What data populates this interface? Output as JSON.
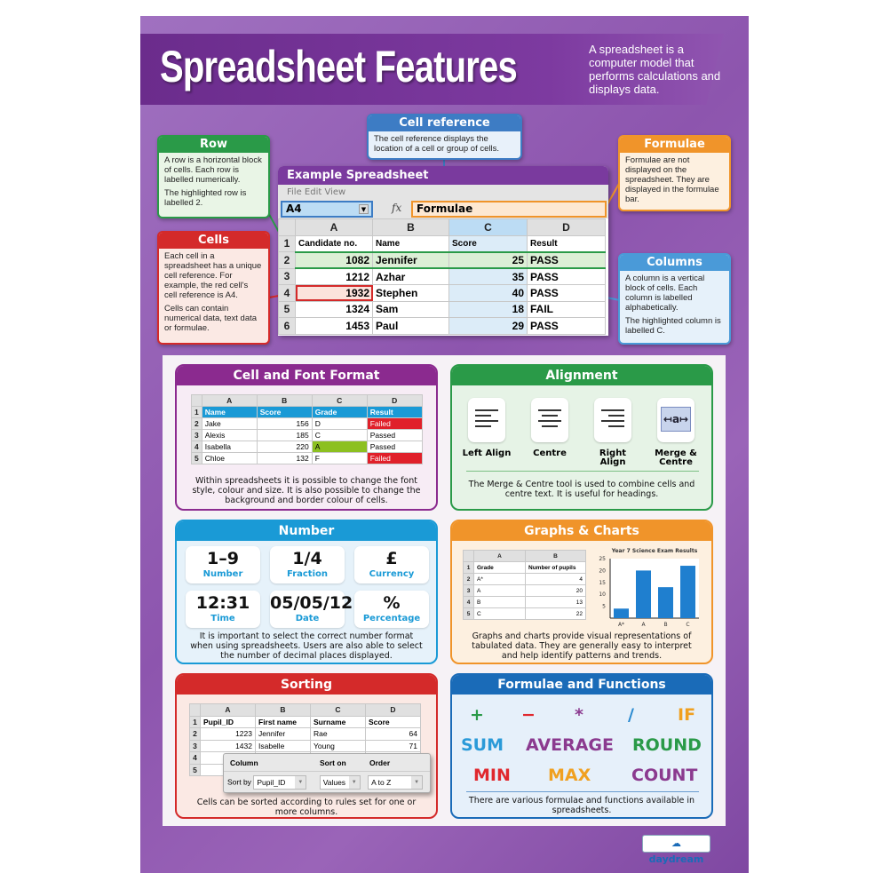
{
  "title": "Spreadsheet Features",
  "intro": "A spreadsheet is a computer model that performs calculations and displays data.",
  "colors": {
    "purple": "#7a3a9e",
    "green": "#2a9a48",
    "red": "#d42a2a",
    "blue": "#3d7cc4",
    "orange": "#f0942a",
    "light_blue": "#4a9ad8",
    "header_blue": "#1a9ad6"
  },
  "callouts": {
    "cell_reference": {
      "title": "Cell reference",
      "text": "The cell reference displays the location of a cell or group of cells."
    },
    "row": {
      "title": "Row",
      "p1": "A row is a horizontal block of cells. Each row is labelled numerically.",
      "p2": "The highlighted row is labelled 2."
    },
    "cells": {
      "title": "Cells",
      "p1": "Each cell in a spreadsheet has a unique cell reference. For example, the red cell's cell reference is A4.",
      "p2": "Cells can contain numerical data, text data or formulae."
    },
    "formulae": {
      "title": "Formulae",
      "text": "Formulae are not displayed on the spreadsheet. They are displayed in the formulae bar."
    },
    "columns": {
      "title": "Columns",
      "p1": "A column is a vertical block of cells. Each column is labelled alphabetically.",
      "p2": "The highlighted column is labelled C."
    }
  },
  "example": {
    "title": "Example Spreadsheet",
    "menu": "File  Edit  View",
    "cell_ref": "A4",
    "fx": "fx",
    "formula": "Formulae",
    "columns": [
      "A",
      "B",
      "C",
      "D"
    ],
    "rows": [
      [
        "Candidate no.",
        "Name",
        "Score",
        "Result"
      ],
      [
        "1082",
        "Jennifer",
        "25",
        "PASS"
      ],
      [
        "1212",
        "Azhar",
        "35",
        "PASS"
      ],
      [
        "1932",
        "Stephen",
        "40",
        "PASS"
      ],
      [
        "1324",
        "Sam",
        "18",
        "FAIL"
      ],
      [
        "1453",
        "Paul",
        "29",
        "PASS"
      ]
    ]
  },
  "cell_font": {
    "title": "Cell and Font Format",
    "columns": [
      "A",
      "B",
      "C",
      "D"
    ],
    "rows": [
      [
        "Name",
        "Score",
        "Grade",
        "Result"
      ],
      [
        "Jake",
        "156",
        "D",
        "Failed"
      ],
      [
        "Alexis",
        "185",
        "C",
        "Passed"
      ],
      [
        "Isabella",
        "220",
        "A",
        "Passed"
      ],
      [
        "Chloe",
        "132",
        "F",
        "Failed"
      ]
    ],
    "caption": "Within spreadsheets it is possible to change the font style, colour and size. It is also possible to change the background and border colour of cells."
  },
  "alignment": {
    "title": "Alignment",
    "items": [
      {
        "label": "Left Align",
        "icon": "left-align-icon"
      },
      {
        "label": "Centre",
        "icon": "centre-align-icon"
      },
      {
        "label": "Right Align",
        "icon": "right-align-icon"
      },
      {
        "label": "Merge & Centre",
        "icon": "merge-centre-icon"
      }
    ],
    "merge_glyph": "↤a↦",
    "caption": "The Merge & Centre tool is used to combine cells and centre text. It is useful for headings."
  },
  "number": {
    "title": "Number",
    "items": [
      {
        "value": "1–9",
        "label": "Number"
      },
      {
        "value": "1/4",
        "label": "Fraction"
      },
      {
        "value": "£",
        "label": "Currency"
      },
      {
        "value": "12:31",
        "label": "Time"
      },
      {
        "value": "05/05/12",
        "label": "Date"
      },
      {
        "value": "%",
        "label": "Percentage"
      }
    ],
    "caption": "It is important to select the correct number format when using spreadsheets. Users are also able to select the number of decimal places displayed."
  },
  "graphs": {
    "title": "Graphs & Charts",
    "columns": [
      "A",
      "B"
    ],
    "rows": [
      [
        "Grade",
        "Number of pupils"
      ],
      [
        "A*",
        "4"
      ],
      [
        "A",
        "20"
      ],
      [
        "B",
        "13"
      ],
      [
        "C",
        "22"
      ]
    ],
    "caption": "Graphs and charts provide visual representations of tabulated data. They are generally easy to interpret and help identify patterns and trends."
  },
  "chart_data": {
    "type": "bar",
    "title": "Year 7 Science Exam Results",
    "categories": [
      "A*",
      "A",
      "B",
      "C"
    ],
    "values": [
      4,
      20,
      13,
      22
    ],
    "ylim": [
      0,
      25
    ],
    "yticks": [
      5,
      10,
      15,
      20,
      25
    ],
    "color": "#1f7fcf"
  },
  "sorting": {
    "title": "Sorting",
    "columns": [
      "A",
      "B",
      "C",
      "D"
    ],
    "rows": [
      [
        "Pupil_ID",
        "First name",
        "Surname",
        "Score"
      ],
      [
        "1223",
        "Jennifer",
        "Rae",
        "64"
      ],
      [
        "1432",
        "Isabelle",
        "Young",
        "71"
      ],
      [
        "",
        "",
        "",
        ""
      ],
      [
        "",
        "",
        "",
        ""
      ]
    ],
    "dialog": {
      "col_header": "Column",
      "sort_header": "Sort on",
      "order_header": "Order",
      "sort_by": "Sort by",
      "column": "Pupil_ID",
      "sort_on": "Values",
      "order": "A to Z"
    },
    "caption": "Cells can be sorted according to rules set for one or more columns."
  },
  "functions": {
    "title": "Formulae and Functions",
    "items": [
      {
        "t": "+",
        "c": "#2a9a48"
      },
      {
        "t": "−",
        "c": "#e0282e"
      },
      {
        "t": "*",
        "c": "#8b3a8f"
      },
      {
        "t": "/",
        "c": "#2a8ad0"
      },
      {
        "t": "IF",
        "c": "#f0a020"
      },
      {
        "t": "SUM",
        "c": "#2a9ad8"
      },
      {
        "t": "AVERAGE",
        "c": "#8b3a8f"
      },
      {
        "t": "ROUND",
        "c": "#2a9a48"
      },
      {
        "t": "MIN",
        "c": "#e0282e"
      },
      {
        "t": "MAX",
        "c": "#f0a020"
      },
      {
        "t": "COUNT",
        "c": "#8b3a8f"
      }
    ],
    "caption": "There are various formulae and functions available in spreadsheets."
  },
  "logo": "daydream"
}
